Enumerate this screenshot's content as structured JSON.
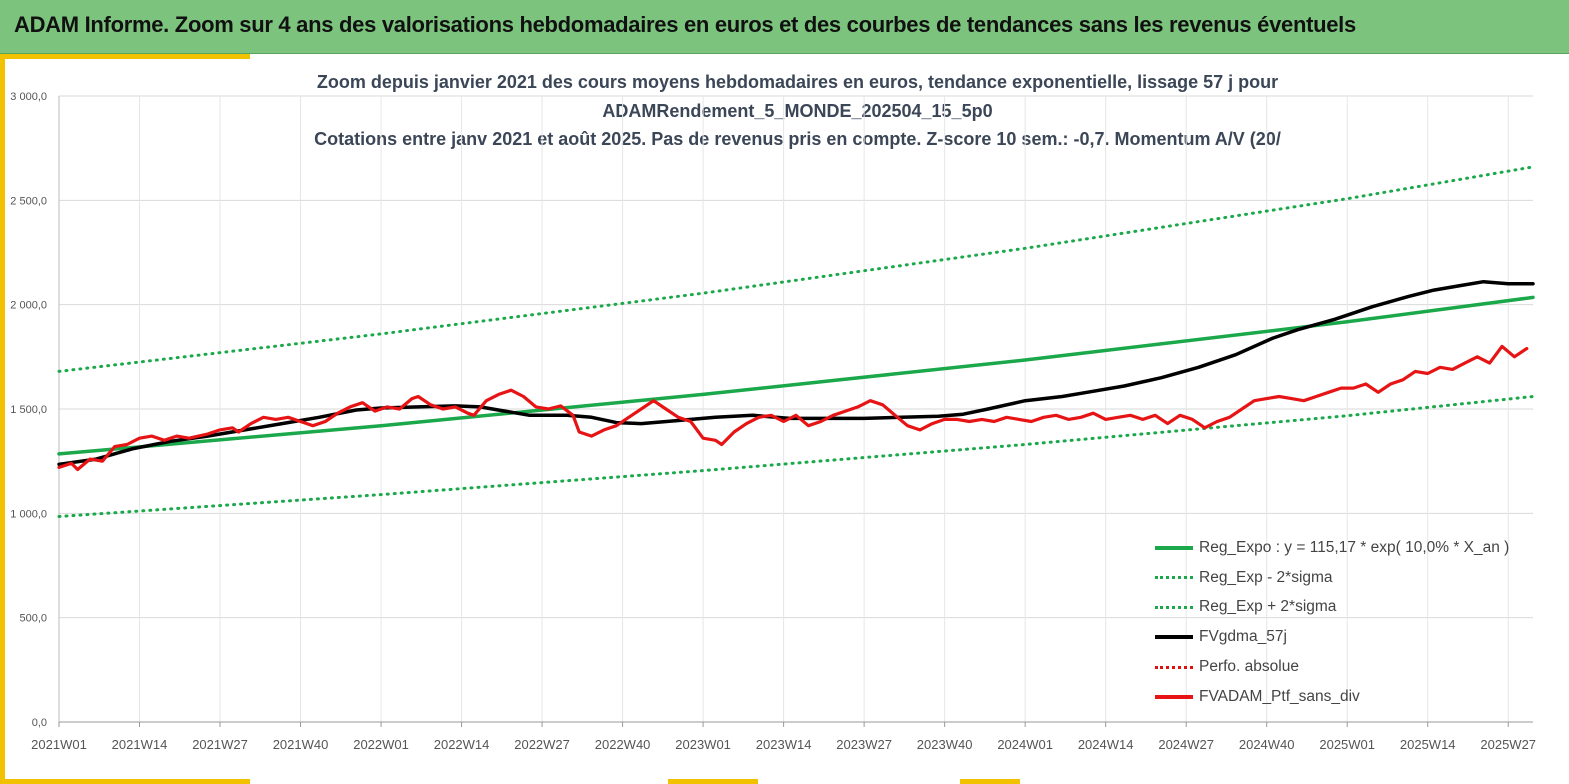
{
  "banner": {
    "title": "ADAM Informe. Zoom sur 4 ans des valorisations hebdomadaires en euros et des courbes de tendances sans les revenus éventuels"
  },
  "chart_data": {
    "type": "line",
    "title_lines": [
      "Zoom depuis janvier 2021 des cours moyens hebdomadaires  en euros, tendance exponentielle, lissage 57 j pour",
      "ADAMRendement_5_MONDE_202504_15_5p0",
      "Cotations  entre janv 2021 et août 2025. Pas de revenus pris en compte.  Z-score 10 sem.: -0,7. Momentum A/V (20/"
    ],
    "ylim": [
      0,
      3000
    ],
    "y_ticks": [
      "0,0",
      "500,0",
      "1 000,0",
      "1 500,0",
      "2 000,0",
      "2 500,0",
      "3 000,0"
    ],
    "y_tick_values": [
      0,
      500,
      1000,
      1500,
      2000,
      2500,
      3000
    ],
    "x_ticks": [
      "2021W01",
      "2021W14",
      "2021W27",
      "2021W40",
      "2022W01",
      "2022W14",
      "2022W27",
      "2022W40",
      "2023W01",
      "2023W14",
      "2023W27",
      "2023W40",
      "2024W01",
      "2024W14",
      "2024W27",
      "2024W40",
      "2025W01",
      "2025W14",
      "2025W27"
    ],
    "x_tick_weeks": [
      0,
      13,
      26,
      39,
      52,
      65,
      78,
      91,
      104,
      117,
      130,
      143,
      156,
      169,
      182,
      195,
      208,
      221,
      234
    ],
    "x_max_week": 238,
    "grid": true,
    "legend_position": "bottom-right",
    "colors": {
      "trend": "#1aa84a",
      "smooth": "#000000",
      "price": "#e61414",
      "perf": "#e01010"
    },
    "series": [
      {
        "name": "Reg_Expo : y = 115,17 * exp( 10,0% *  X_an )",
        "style": "solid",
        "color": "#1aa84a",
        "points": [
          [
            0,
            1285
          ],
          [
            52,
            1420
          ],
          [
            104,
            1570
          ],
          [
            156,
            1735
          ],
          [
            208,
            1918
          ],
          [
            238,
            2035
          ]
        ]
      },
      {
        "name": "Reg_Exp - 2*sigma",
        "style": "dotted",
        "color": "#1aa84a",
        "points": [
          [
            0,
            985
          ],
          [
            52,
            1090
          ],
          [
            104,
            1205
          ],
          [
            156,
            1330
          ],
          [
            208,
            1468
          ],
          [
            238,
            1560
          ]
        ]
      },
      {
        "name": "Reg_Exp + 2*sigma",
        "style": "dotted",
        "color": "#1aa84a",
        "points": [
          [
            0,
            1680
          ],
          [
            52,
            1860
          ],
          [
            104,
            2055
          ],
          [
            156,
            2270
          ],
          [
            208,
            2508
          ],
          [
            238,
            2660
          ]
        ]
      },
      {
        "name": "FVgdma_57j",
        "style": "solid",
        "color": "#000000",
        "points": [
          [
            0,
            1235
          ],
          [
            6,
            1260
          ],
          [
            12,
            1310
          ],
          [
            18,
            1345
          ],
          [
            24,
            1370
          ],
          [
            30,
            1400
          ],
          [
            36,
            1430
          ],
          [
            42,
            1460
          ],
          [
            48,
            1495
          ],
          [
            52,
            1505
          ],
          [
            58,
            1510
          ],
          [
            64,
            1515
          ],
          [
            68,
            1510
          ],
          [
            72,
            1490
          ],
          [
            76,
            1470
          ],
          [
            82,
            1470
          ],
          [
            86,
            1460
          ],
          [
            90,
            1435
          ],
          [
            94,
            1430
          ],
          [
            100,
            1445
          ],
          [
            106,
            1460
          ],
          [
            112,
            1470
          ],
          [
            118,
            1455
          ],
          [
            124,
            1455
          ],
          [
            130,
            1455
          ],
          [
            136,
            1460
          ],
          [
            142,
            1465
          ],
          [
            146,
            1475
          ],
          [
            150,
            1500
          ],
          [
            156,
            1540
          ],
          [
            162,
            1560
          ],
          [
            166,
            1580
          ],
          [
            172,
            1610
          ],
          [
            178,
            1650
          ],
          [
            184,
            1700
          ],
          [
            190,
            1760
          ],
          [
            196,
            1840
          ],
          [
            200,
            1880
          ],
          [
            206,
            1930
          ],
          [
            212,
            1990
          ],
          [
            218,
            2040
          ],
          [
            222,
            2070
          ],
          [
            226,
            2090
          ],
          [
            230,
            2110
          ],
          [
            234,
            2100
          ],
          [
            238,
            2100
          ]
        ]
      },
      {
        "name": "Perfo. absolue",
        "style": "dotted",
        "color": "#e01010",
        "points": []
      },
      {
        "name": "FVADAM_Ptf_sans_div",
        "style": "solid",
        "color": "#e61414",
        "points": [
          [
            0,
            1220
          ],
          [
            2,
            1240
          ],
          [
            3,
            1210
          ],
          [
            5,
            1260
          ],
          [
            7,
            1250
          ],
          [
            9,
            1320
          ],
          [
            11,
            1330
          ],
          [
            13,
            1360
          ],
          [
            15,
            1370
          ],
          [
            17,
            1350
          ],
          [
            19,
            1370
          ],
          [
            21,
            1360
          ],
          [
            24,
            1380
          ],
          [
            26,
            1400
          ],
          [
            28,
            1410
          ],
          [
            29,
            1390
          ],
          [
            31,
            1430
          ],
          [
            33,
            1460
          ],
          [
            35,
            1450
          ],
          [
            37,
            1460
          ],
          [
            39,
            1440
          ],
          [
            41,
            1420
          ],
          [
            43,
            1440
          ],
          [
            45,
            1480
          ],
          [
            47,
            1510
          ],
          [
            49,
            1530
          ],
          [
            50,
            1510
          ],
          [
            51,
            1490
          ],
          [
            53,
            1510
          ],
          [
            55,
            1500
          ],
          [
            57,
            1550
          ],
          [
            58,
            1560
          ],
          [
            60,
            1520
          ],
          [
            62,
            1500
          ],
          [
            64,
            1510
          ],
          [
            66,
            1480
          ],
          [
            67,
            1470
          ],
          [
            69,
            1540
          ],
          [
            71,
            1570
          ],
          [
            73,
            1590
          ],
          [
            75,
            1560
          ],
          [
            77,
            1510
          ],
          [
            79,
            1500
          ],
          [
            81,
            1515
          ],
          [
            83,
            1470
          ],
          [
            84,
            1390
          ],
          [
            86,
            1370
          ],
          [
            88,
            1400
          ],
          [
            90,
            1420
          ],
          [
            92,
            1460
          ],
          [
            94,
            1500
          ],
          [
            96,
            1540
          ],
          [
            98,
            1500
          ],
          [
            100,
            1460
          ],
          [
            102,
            1440
          ],
          [
            104,
            1360
          ],
          [
            106,
            1350
          ],
          [
            107,
            1330
          ],
          [
            109,
            1390
          ],
          [
            111,
            1430
          ],
          [
            113,
            1460
          ],
          [
            115,
            1470
          ],
          [
            117,
            1440
          ],
          [
            119,
            1470
          ],
          [
            121,
            1420
          ],
          [
            123,
            1440
          ],
          [
            125,
            1470
          ],
          [
            127,
            1490
          ],
          [
            129,
            1510
          ],
          [
            131,
            1540
          ],
          [
            133,
            1520
          ],
          [
            135,
            1470
          ],
          [
            137,
            1420
          ],
          [
            139,
            1400
          ],
          [
            141,
            1430
          ],
          [
            143,
            1450
          ],
          [
            145,
            1450
          ],
          [
            147,
            1440
          ],
          [
            149,
            1450
          ],
          [
            151,
            1440
          ],
          [
            153,
            1460
          ],
          [
            155,
            1450
          ],
          [
            157,
            1440
          ],
          [
            159,
            1460
          ],
          [
            161,
            1470
          ],
          [
            163,
            1450
          ],
          [
            165,
            1460
          ],
          [
            167,
            1480
          ],
          [
            169,
            1450
          ],
          [
            171,
            1460
          ],
          [
            173,
            1470
          ],
          [
            175,
            1450
          ],
          [
            177,
            1470
          ],
          [
            179,
            1430
          ],
          [
            181,
            1470
          ],
          [
            183,
            1450
          ],
          [
            185,
            1410
          ],
          [
            187,
            1440
          ],
          [
            189,
            1460
          ],
          [
            191,
            1500
          ],
          [
            193,
            1540
          ],
          [
            195,
            1550
          ],
          [
            197,
            1560
          ],
          [
            199,
            1550
          ],
          [
            201,
            1540
          ],
          [
            203,
            1560
          ],
          [
            205,
            1580
          ],
          [
            207,
            1600
          ],
          [
            209,
            1600
          ],
          [
            211,
            1620
          ],
          [
            213,
            1580
          ],
          [
            215,
            1620
          ],
          [
            217,
            1640
          ],
          [
            219,
            1680
          ],
          [
            221,
            1670
          ],
          [
            223,
            1700
          ],
          [
            225,
            1690
          ],
          [
            227,
            1720
          ],
          [
            229,
            1750
          ],
          [
            231,
            1720
          ],
          [
            233,
            1800
          ],
          [
            235,
            1750
          ],
          [
            237,
            1790
          ]
        ]
      }
    ]
  },
  "legend": [
    {
      "label": "Reg_Expo : y = 115,17 * exp( 10,0% *  X_an )",
      "swatch": "solid-green"
    },
    {
      "label": "Reg_Exp - 2*sigma",
      "swatch": "dot-green"
    },
    {
      "label": "Reg_Exp + 2*sigma",
      "swatch": "dot-green"
    },
    {
      "label": "FVgdma_57j",
      "swatch": "solid-black"
    },
    {
      "label": "Perfo. absolue",
      "swatch": "dot-red"
    },
    {
      "label": "FVADAM_Ptf_sans_div",
      "swatch": "solid-red"
    }
  ]
}
